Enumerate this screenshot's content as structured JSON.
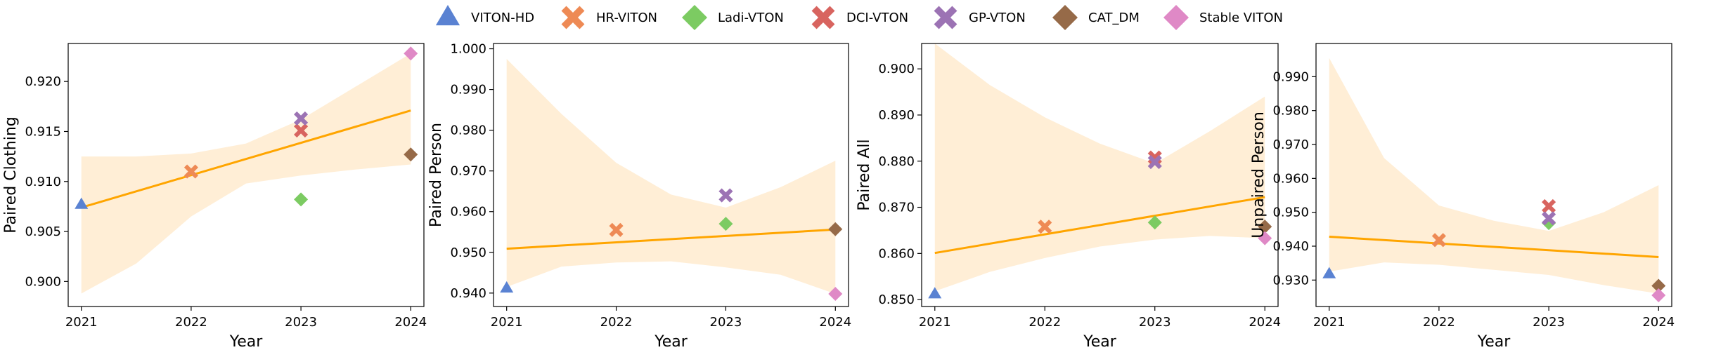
{
  "legend": [
    {
      "name": "VITON-HD",
      "marker": "triangle",
      "color": "#5a82d2"
    },
    {
      "name": "HR-VITON",
      "marker": "x",
      "color": "#ee8a55"
    },
    {
      "name": "Ladi-VTON",
      "marker": "diamond",
      "color": "#7ccb62"
    },
    {
      "name": "DCI-VTON",
      "marker": "x",
      "color": "#d8645f"
    },
    {
      "name": "GP-VTON",
      "marker": "x",
      "color": "#9c73b4"
    },
    {
      "name": "CAT_DM",
      "marker": "diamond",
      "color": "#966a48"
    },
    {
      "name": "Stable VITON",
      "marker": "diamond",
      "color": "#df89c6"
    }
  ],
  "colors": {
    "fit_line": "#ffa500",
    "ci_band": "#ffeed6"
  },
  "chart_data": [
    {
      "type": "scatter",
      "xlabel": "Year",
      "ylabel": "Paired Clothing",
      "x_ticks": [
        2021,
        2022,
        2023,
        2024
      ],
      "xlim": [
        2020.88,
        2024.12
      ],
      "ylim": [
        0.8975,
        0.9238
      ],
      "y_ticks": [
        "0.900",
        "0.905",
        "0.910",
        "0.915",
        "0.920"
      ],
      "points": [
        {
          "series": "VITON-HD",
          "x": 2021,
          "y": 0.9077
        },
        {
          "series": "HR-VITON",
          "x": 2022,
          "y": 0.911
        },
        {
          "series": "Ladi-VTON",
          "x": 2023,
          "y": 0.9082
        },
        {
          "series": "DCI-VTON",
          "x": 2023,
          "y": 0.9151
        },
        {
          "series": "GP-VTON",
          "x": 2023,
          "y": 0.9163
        },
        {
          "series": "CAT_DM",
          "x": 2024,
          "y": 0.9127
        },
        {
          "series": "Stable VITON",
          "x": 2024,
          "y": 0.9228
        }
      ],
      "fit": {
        "x": [
          2021,
          2024
        ],
        "y": [
          0.9074,
          0.9171
        ]
      },
      "ci_band": {
        "x": [
          2021,
          2021.5,
          2022,
          2022.5,
          2023,
          2023.5,
          2024
        ],
        "lower": [
          0.8988,
          0.9018,
          0.9065,
          0.9098,
          0.9106,
          0.9112,
          0.9117
        ],
        "upper": [
          0.9125,
          0.9125,
          0.9128,
          0.9138,
          0.9162,
          0.9195,
          0.9228
        ]
      }
    },
    {
      "type": "scatter",
      "xlabel": "Year",
      "ylabel": "Paired Person",
      "x_ticks": [
        2021,
        2022,
        2023,
        2024
      ],
      "xlim": [
        2020.88,
        2024.12
      ],
      "ylim": [
        0.9367,
        1.0013
      ],
      "y_ticks": [
        "0.940",
        "0.950",
        "0.960",
        "0.970",
        "0.980",
        "0.990",
        "1.000"
      ],
      "points": [
        {
          "series": "VITON-HD",
          "x": 2021,
          "y": 0.9412
        },
        {
          "series": "HR-VITON",
          "x": 2022,
          "y": 0.9555
        },
        {
          "series": "Ladi-VTON",
          "x": 2023,
          "y": 0.957
        },
        {
          "series": "GP-VTON",
          "x": 2023,
          "y": 0.964
        },
        {
          "series": "CAT_DM",
          "x": 2024,
          "y": 0.9557
        },
        {
          "series": "Stable VITON",
          "x": 2024,
          "y": 0.9398
        }
      ],
      "fit": {
        "x": [
          2021,
          2024
        ],
        "y": [
          0.9509,
          0.9556
        ]
      },
      "ci_band": {
        "x": [
          2021,
          2021.5,
          2022,
          2022.5,
          2023,
          2023.5,
          2024
        ],
        "lower": [
          0.9415,
          0.9465,
          0.9475,
          0.9478,
          0.9463,
          0.9445,
          0.9398
        ],
        "upper": [
          0.9975,
          0.984,
          0.972,
          0.9642,
          0.961,
          0.966,
          0.9725
        ]
      }
    },
    {
      "type": "scatter",
      "xlabel": "Year",
      "ylabel": "Paired All",
      "x_ticks": [
        2021,
        2022,
        2023,
        2024
      ],
      "xlim": [
        2020.88,
        2024.12
      ],
      "ylim": [
        0.8485,
        0.9055
      ],
      "y_ticks": [
        "0.850",
        "0.860",
        "0.870",
        "0.880",
        "0.890",
        "0.900"
      ],
      "points": [
        {
          "series": "VITON-HD",
          "x": 2021,
          "y": 0.8512
        },
        {
          "series": "HR-VITON",
          "x": 2022,
          "y": 0.8658
        },
        {
          "series": "Ladi-VTON",
          "x": 2023,
          "y": 0.8667
        },
        {
          "series": "DCI-VTON",
          "x": 2023,
          "y": 0.8808
        },
        {
          "series": "GP-VTON",
          "x": 2023,
          "y": 0.8798
        },
        {
          "series": "CAT_DM",
          "x": 2024,
          "y": 0.8658
        },
        {
          "series": "Stable VITON",
          "x": 2024,
          "y": 0.8633
        }
      ],
      "fit": {
        "x": [
          2021,
          2024
        ],
        "y": [
          0.8601,
          0.8722
        ]
      },
      "ci_band": {
        "x": [
          2021,
          2021.5,
          2022,
          2022.5,
          2023,
          2023.5,
          2024
        ],
        "lower": [
          0.8518,
          0.856,
          0.859,
          0.8615,
          0.863,
          0.8638,
          0.8633
        ],
        "upper": [
          0.9055,
          0.8965,
          0.8895,
          0.8838,
          0.8795,
          0.8865,
          0.894
        ]
      }
    },
    {
      "type": "scatter",
      "xlabel": "Year",
      "ylabel": "Unpaired Person",
      "x_ticks": [
        2021,
        2022,
        2023,
        2024
      ],
      "xlim": [
        2020.88,
        2024.12
      ],
      "ylim": [
        0.9222,
        0.9998
      ],
      "y_ticks": [
        "0.930",
        "0.940",
        "0.950",
        "0.960",
        "0.970",
        "0.980",
        "0.990"
      ],
      "points": [
        {
          "series": "VITON-HD",
          "x": 2021,
          "y": 0.9318
        },
        {
          "series": "HR-VITON",
          "x": 2022,
          "y": 0.9418
        },
        {
          "series": "Ladi-VTON",
          "x": 2023,
          "y": 0.9468
        },
        {
          "series": "DCI-VTON",
          "x": 2023,
          "y": 0.9518
        },
        {
          "series": "GP-VTON",
          "x": 2023,
          "y": 0.9482
        },
        {
          "series": "CAT_DM",
          "x": 2024,
          "y": 0.9283
        },
        {
          "series": "Stable VITON",
          "x": 2024,
          "y": 0.9255
        }
      ],
      "fit": {
        "x": [
          2021,
          2024
        ],
        "y": [
          0.9428,
          0.9368
        ]
      },
      "ci_band": {
        "x": [
          2021,
          2021.5,
          2022,
          2022.5,
          2023,
          2023.5,
          2024
        ],
        "lower": [
          0.9325,
          0.9352,
          0.9345,
          0.933,
          0.9315,
          0.9285,
          0.926
        ],
        "upper": [
          0.9955,
          0.966,
          0.952,
          0.9475,
          0.9445,
          0.95,
          0.958
        ]
      }
    }
  ]
}
